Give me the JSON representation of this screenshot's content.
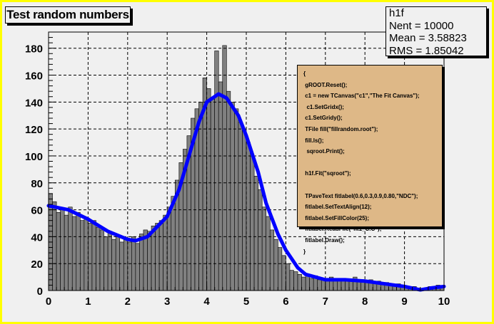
{
  "title": "Test random numbers",
  "stats": {
    "name": "h1f",
    "lines": [
      "Nent = 10000",
      "Mean = 3.58823",
      "RMS  = 1.85042"
    ]
  },
  "code_lines": [
    "{",
    " gROOT.Reset();",
    " c1 = new TCanvas(\"c1\",\"The Fit Canvas\");",
    "  c1.SetGridx();",
    " c1.SetGridy();",
    " TFile fill(\"fillrandom.root\");",
    " fill.ls();",
    "  sqroot.Print();",
    "",
    " h1f.Fit(\"sqroot\");",
    "",
    " TPaveText fitlabel(0.6,0.3,0.9,0.80,\"NDC\");",
    " fitlabel.SetTextAlign(12);",
    " fitlabel.SetFillColor(25);",
    " fitlabel.ReadFile(\"fit1_C.C\");",
    " fitlabel.Draw();",
    "}"
  ],
  "colors": {
    "hist_fill": "#808080",
    "fit": "#0000ff",
    "canvas_border": "#ffff00",
    "pave": "#deb887"
  },
  "chart_data": {
    "type": "bar",
    "title": "Test random numbers",
    "xlim": [
      0,
      10
    ],
    "ylim": [
      0,
      192
    ],
    "xticks": [
      "0",
      "1",
      "2",
      "3",
      "4",
      "5",
      "6",
      "7",
      "8",
      "9",
      "10"
    ],
    "yticks": [
      "0",
      "20",
      "40",
      "60",
      "80",
      "100",
      "120",
      "140",
      "160",
      "180"
    ],
    "grid": true,
    "bin_width": 0.1,
    "values": [
      72,
      66,
      58,
      60,
      56,
      62,
      55,
      58,
      52,
      54,
      50,
      52,
      47,
      45,
      40,
      44,
      38,
      40,
      36,
      38,
      36,
      40,
      35,
      42,
      45,
      44,
      48,
      50,
      52,
      56,
      62,
      70,
      82,
      95,
      105,
      115,
      128,
      135,
      140,
      158,
      150,
      142,
      178,
      155,
      182,
      148,
      140,
      135,
      125,
      120,
      110,
      100,
      85,
      75,
      62,
      55,
      45,
      38,
      32,
      26,
      20,
      15,
      14,
      12,
      10,
      12,
      9,
      11,
      8,
      9,
      8,
      10,
      9,
      8,
      9,
      7,
      8,
      10,
      8,
      7,
      7,
      8,
      6,
      7,
      5,
      6,
      5,
      4,
      5,
      3,
      3,
      2,
      3,
      1,
      1,
      2,
      3,
      2,
      4,
      3
    ],
    "fit": {
      "name": "sqroot",
      "x": [
        0,
        0.5,
        1,
        1.5,
        2,
        2.2,
        2.5,
        3,
        3.3,
        3.5,
        3.8,
        4,
        4.3,
        4.5,
        4.8,
        5,
        5.3,
        5.5,
        5.8,
        6,
        6.3,
        6.5,
        7,
        7.5,
        8,
        8.5,
        9,
        9.4,
        9.7,
        10
      ],
      "y": [
        63,
        60,
        53,
        44,
        38,
        37,
        40,
        55,
        75,
        95,
        125,
        140,
        146,
        143,
        130,
        115,
        88,
        65,
        42,
        30,
        17,
        12,
        8,
        8,
        7,
        5,
        3,
        0.5,
        2,
        3
      ]
    }
  }
}
